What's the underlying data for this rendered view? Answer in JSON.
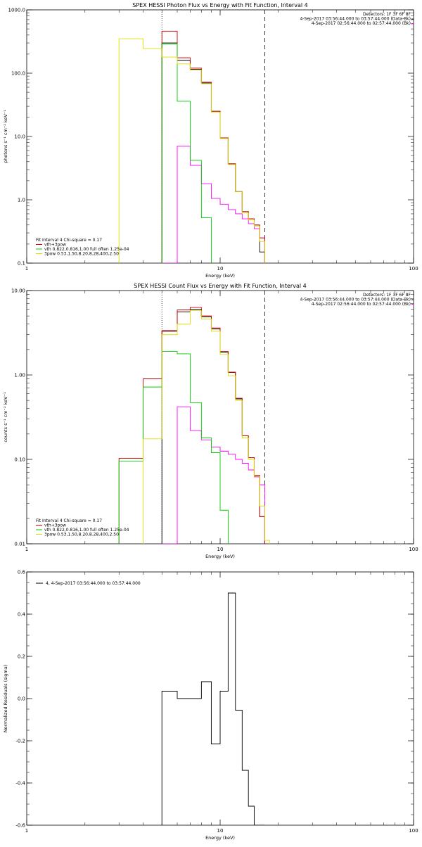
{
  "chart_data": [
    {
      "type": "line",
      "title": "SPEX HESSI Photon Flux vs Energy with Fit Function, Interval 4",
      "xlabel": "Energy (keV)",
      "ylabel": "photons s⁻¹ cm⁻² keV⁻¹",
      "xscale": "log",
      "yscale": "log",
      "xlim": [
        1,
        100
      ],
      "ylim": [
        0.1,
        1000
      ],
      "x_ticks": [
        1,
        10,
        100
      ],
      "x_tick_labels": [
        "1",
        "10",
        "100"
      ],
      "y_ticks": [
        0.1,
        1,
        10,
        100,
        1000
      ],
      "y_tick_labels": [
        "0.1",
        "1.0",
        "10.0",
        "100.0",
        "1000.0"
      ],
      "bin_edges": [
        3.0,
        4.0,
        5.0,
        6.0,
        7.0,
        8.0,
        9.0,
        10.0,
        11.0,
        12.0,
        13.0,
        14.0,
        15.0,
        16.0,
        17.0,
        18.0
      ],
      "vlines": [
        {
          "x": 5.0,
          "style": "dotted"
        },
        {
          "x": 17.0,
          "style": "dashed"
        }
      ],
      "legend_header": [
        "Detectors: 1F 3F 6F 8F",
        "4-Sep-2017 03:56:44.000 to 03:57:44.000 (Data-Bk)",
        "4-Sep-2017 02:56:44.000 to 02:57:44.000 (Bk)"
      ],
      "legend_fit": [
        "Fit Interval 4   Chi-square = 0.17",
        "vth+3pow",
        "vth 0.822,0.816,1.00  full often 1.25e-04",
        "3pow 0.53,1.50,8.20,8.28,400,2.50"
      ],
      "series": [
        {
          "color": "#000000",
          "values": [
            null,
            null,
            300,
            160,
            115,
            70,
            25,
            9.5,
            3.7,
            1.35,
            0.65,
            0.5,
            0.4,
            0.15,
            null
          ]
        },
        {
          "color": "#ff00ff",
          "values": [
            null,
            null,
            0.1,
            7.0,
            3.5,
            1.8,
            1.05,
            0.85,
            0.7,
            0.6,
            0.5,
            0.42,
            0.35,
            0.25,
            null
          ]
        },
        {
          "color": "#cc0000",
          "values": [
            null,
            null,
            460,
            175,
            120,
            72,
            25,
            9.5,
            3.7,
            1.35,
            0.65,
            0.5,
            0.4,
            0.25,
            null
          ]
        },
        {
          "color": "#00cc00",
          "values": [
            null,
            null,
            290,
            36,
            4.2,
            0.52,
            null,
            null,
            null,
            null,
            null,
            null,
            null,
            null,
            null
          ]
        },
        {
          "color": "#dddd00",
          "values": [
            350,
            245,
            180,
            140,
            112,
            68,
            24,
            9.3,
            3.6,
            1.35,
            0.62,
            0.48,
            0.38,
            0.22,
            null
          ]
        }
      ]
    },
    {
      "type": "line",
      "title": "SPEX HESSI Count Flux vs Energy with Fit Function, Interval 4",
      "xlabel": "Energy (keV)",
      "ylabel": "counts s⁻¹ cm⁻² keV⁻¹",
      "xscale": "log",
      "yscale": "log",
      "xlim": [
        1,
        100
      ],
      "ylim": [
        0.01,
        10
      ],
      "x_ticks": [
        1,
        10,
        100
      ],
      "x_tick_labels": [
        "1",
        "10",
        "100"
      ],
      "y_ticks": [
        0.01,
        0.1,
        1,
        10
      ],
      "y_tick_labels": [
        "0.01",
        "0.10",
        "1.00",
        "10.00"
      ],
      "bin_edges": [
        3.0,
        4.0,
        5.0,
        6.0,
        7.0,
        8.0,
        9.0,
        10.0,
        11.0,
        12.0,
        13.0,
        14.0,
        15.0,
        16.0,
        17.0,
        18.0
      ],
      "vlines": [
        {
          "x": 5.0,
          "style": "dotted"
        },
        {
          "x": 17.0,
          "style": "dashed"
        }
      ],
      "legend_header": [
        "Detectors: 1F 3F 6F 8F",
        "4-Sep-2017 03:56:44.000 to 03:57:44.000 (Data-Bk)",
        "4-Sep-2017 02:56:44.000 to 02:57:44.000 (Bk)"
      ],
      "legend_fit": [
        "Fit Interval 4   Chi-square = 0.17",
        "vth+3pow",
        "vth 0.822,0.816,1.00  full often 1.25e-04",
        "3pow 0.53,1.50,8.20,8.28,400,2.50"
      ],
      "series": [
        {
          "color": "#000000",
          "values": [
            null,
            null,
            3.3,
            5.6,
            6.0,
            4.9,
            3.5,
            1.85,
            1.07,
            0.52,
            0.19,
            0.105,
            0.065,
            0.021,
            null
          ]
        },
        {
          "color": "#ff00ff",
          "values": [
            null,
            null,
            0.01,
            0.42,
            0.22,
            0.17,
            0.14,
            0.125,
            0.115,
            0.1,
            0.09,
            0.075,
            0.062,
            0.05,
            null
          ]
        },
        {
          "color": "#cc0000",
          "values": [
            0.103,
            0.9,
            3.35,
            5.9,
            6.3,
            5.0,
            3.6,
            1.9,
            1.08,
            0.53,
            0.19,
            0.105,
            0.065,
            0.021,
            null
          ]
        },
        {
          "color": "#00cc00",
          "values": [
            0.095,
            0.72,
            1.9,
            1.78,
            0.47,
            0.18,
            0.12,
            0.025,
            null,
            null,
            null,
            null,
            null,
            null,
            null
          ]
        },
        {
          "color": "#dddd00",
          "values": [
            null,
            0.175,
            3.0,
            4.0,
            5.8,
            4.6,
            3.3,
            1.75,
            0.98,
            0.5,
            0.18,
            0.1,
            0.063,
            0.028,
            0.011
          ]
        }
      ]
    },
    {
      "type": "line",
      "title": "",
      "xlabel": "Energy (keV)",
      "ylabel": "Normalized Residuals (sigma)",
      "xscale": "log",
      "yscale": "linear",
      "xlim": [
        1,
        100
      ],
      "ylim": [
        -0.6,
        0.6
      ],
      "x_ticks": [
        1,
        10,
        100
      ],
      "x_tick_labels": [
        "1",
        "10",
        "100"
      ],
      "y_ticks": [
        -0.6,
        -0.4,
        -0.2,
        0.0,
        0.2,
        0.4,
        0.6
      ],
      "y_tick_labels": [
        "-0.6",
        "-0.4",
        "-0.2",
        "0.0",
        "0.2",
        "0.4",
        "0.6"
      ],
      "bin_edges": [
        5.0,
        6.0,
        7.0,
        8.0,
        9.0,
        10.0,
        11.0,
        12.0,
        13.0,
        14.0,
        15.0,
        17.0
      ],
      "legend": [
        "4,  4-Sep-2017 03:56:44.000 to 03:57:44.000"
      ],
      "series": [
        {
          "color": "#000000",
          "values": [
            0.035,
            0.0,
            0.0,
            0.08,
            -0.215,
            0.035,
            0.5,
            -0.055,
            -0.34,
            -0.51,
            -0.6
          ]
        }
      ]
    }
  ]
}
